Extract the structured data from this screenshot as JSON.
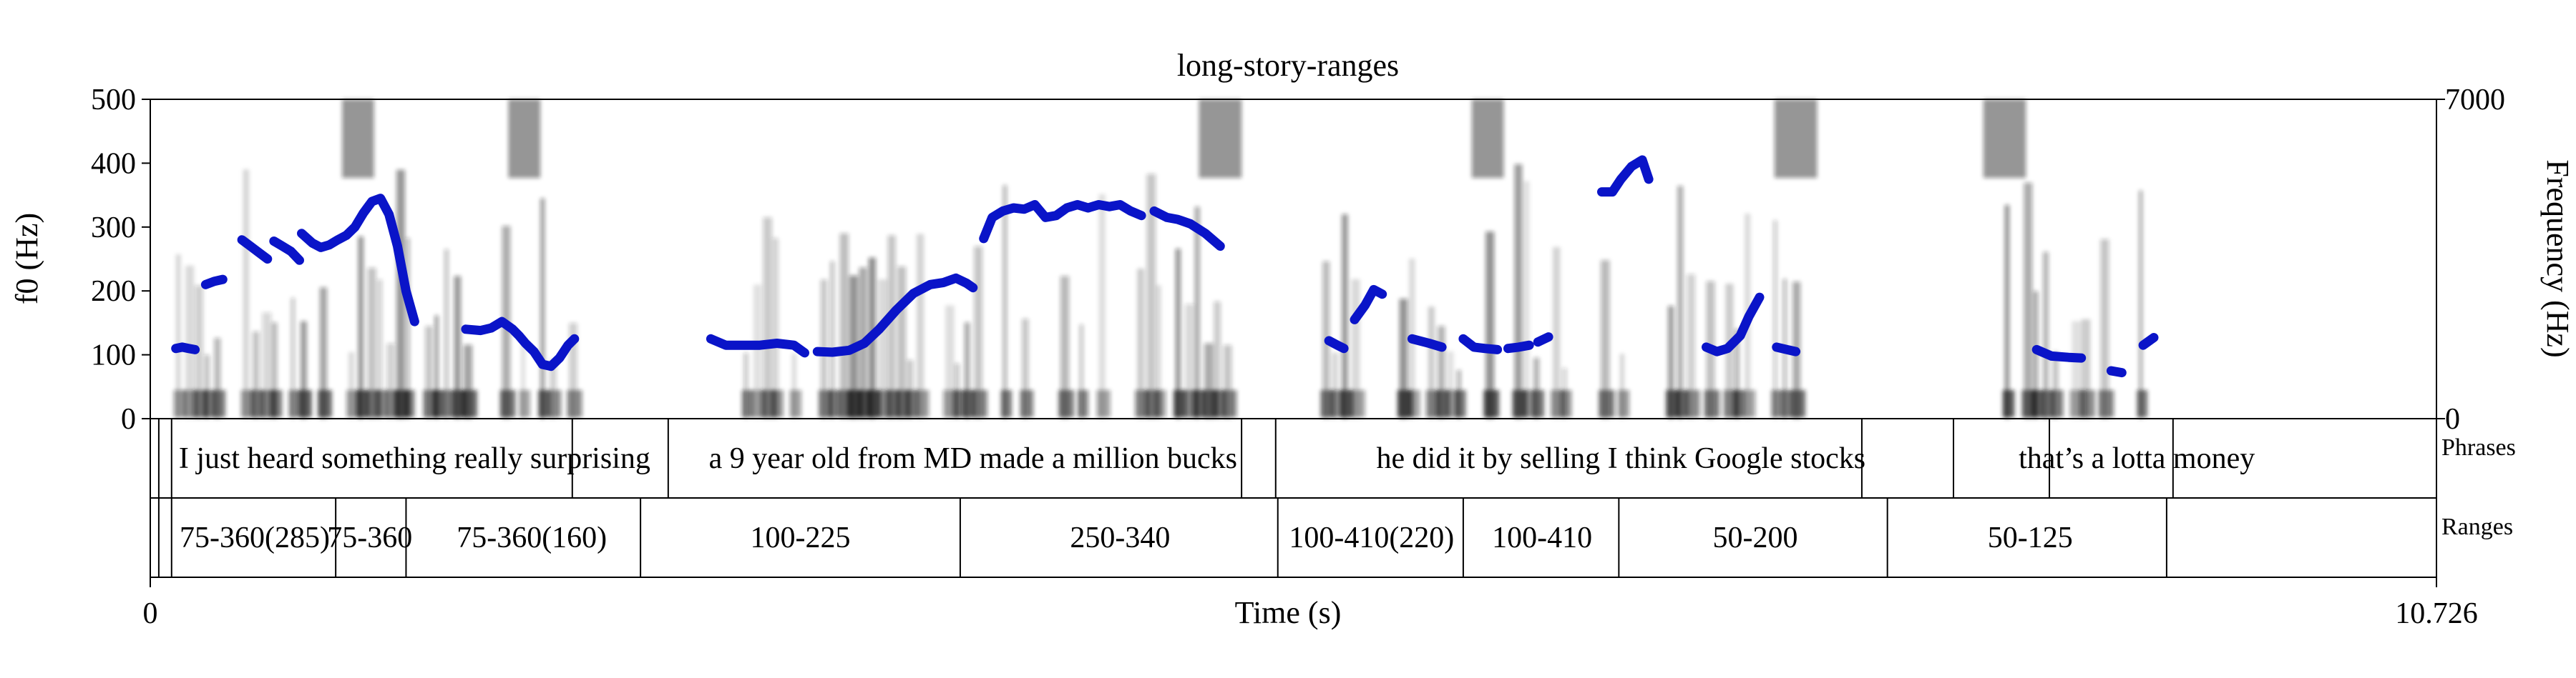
{
  "chart_data": {
    "type": "line",
    "title": "long-story-ranges",
    "xlabel": "Time (s)",
    "ylabel_left": "f0 (Hz)",
    "ylabel_right": "Frequency (Hz)",
    "xlim": [
      0,
      10.726
    ],
    "x_tick_labels": [
      "0",
      "10.726"
    ],
    "ylim_left": [
      0,
      500
    ],
    "y_left_ticks": [
      0,
      100,
      200,
      300,
      400,
      500
    ],
    "ylim_right": [
      0,
      7000
    ],
    "y_right_tick_labels": [
      "0",
      "7000"
    ],
    "grid": false,
    "pitch_color": "#0a14c8",
    "spectrogram_color": "#1a1a1a",
    "tiers": [
      {
        "name": "Phrases",
        "boundaries": [
          0.04,
          0.1,
          1.98,
          2.43,
          5.12,
          5.28,
          8.03,
          8.46,
          8.91,
          9.49
        ],
        "labels": [
          {
            "t": 1.24,
            "text": "I just heard something really surprising"
          },
          {
            "t": 3.86,
            "text": "a 9 year old from MD made a million bucks"
          },
          {
            "t": 6.9,
            "text": "he did it by selling I think Google stocks"
          },
          {
            "t": 9.32,
            "text": "that’s a lotta money"
          }
        ]
      },
      {
        "name": "Ranges",
        "boundaries": [
          0.04,
          0.1,
          0.87,
          1.2,
          2.3,
          3.8,
          5.29,
          6.16,
          6.89,
          8.15,
          9.46
        ],
        "labels": [
          {
            "t": 0.49,
            "text": "75-360(285)"
          },
          {
            "t": 1.03,
            "text": "75-360"
          },
          {
            "t": 1.79,
            "text": "75-360(160)"
          },
          {
            "t": 3.05,
            "text": "100-225"
          },
          {
            "t": 4.55,
            "text": "250-340"
          },
          {
            "t": 5.73,
            "text": "100-410(220)"
          },
          {
            "t": 6.53,
            "text": "100-410"
          },
          {
            "t": 7.53,
            "text": "50-200"
          },
          {
            "t": 8.82,
            "text": "50-125"
          }
        ]
      }
    ],
    "series": [
      {
        "x": [
          0.12,
          0.15,
          0.18,
          0.21
        ],
        "y": [
          110,
          112,
          110,
          108
        ]
      },
      {
        "x": [
          0.26,
          0.3,
          0.34
        ],
        "y": [
          210,
          215,
          218
        ]
      },
      {
        "x": [
          0.43,
          0.47,
          0.51,
          0.55
        ],
        "y": [
          280,
          270,
          260,
          250
        ]
      },
      {
        "x": [
          0.58,
          0.62,
          0.66,
          0.7
        ],
        "y": [
          278,
          270,
          262,
          248
        ]
      },
      {
        "x": [
          0.71,
          0.76,
          0.8,
          0.84,
          0.88,
          0.92,
          0.96,
          1.0,
          1.04,
          1.08,
          1.12,
          1.16,
          1.2,
          1.24
        ],
        "y": [
          290,
          275,
          268,
          272,
          280,
          287,
          300,
          322,
          340,
          345,
          320,
          270,
          200,
          152
        ]
      },
      {
        "x": [
          1.48,
          1.55,
          1.6,
          1.65,
          1.7,
          1.73,
          1.76,
          1.8,
          1.84,
          1.88,
          1.92,
          1.96,
          1.99
        ],
        "y": [
          140,
          138,
          142,
          152,
          140,
          130,
          118,
          105,
          85,
          82,
          95,
          115,
          125
        ]
      },
      {
        "x": [
          2.63,
          2.7,
          2.78,
          2.86,
          2.94,
          3.02,
          3.07
        ],
        "y": [
          125,
          115,
          115,
          115,
          118,
          115,
          103
        ]
      },
      {
        "x": [
          3.13,
          3.2,
          3.28,
          3.35,
          3.42,
          3.5,
          3.58,
          3.66,
          3.72,
          3.78,
          3.83,
          3.86
        ],
        "y": [
          105,
          104,
          107,
          118,
          140,
          170,
          196,
          210,
          213,
          220,
          212,
          205
        ]
      },
      {
        "x": [
          3.91,
          3.95,
          4.0,
          4.05,
          4.1,
          4.15,
          4.2,
          4.25,
          4.3,
          4.35,
          4.4,
          4.45,
          4.5,
          4.55,
          4.6,
          4.65
        ],
        "y": [
          282,
          315,
          325,
          330,
          328,
          335,
          315,
          318,
          330,
          335,
          330,
          335,
          332,
          335,
          325,
          318
        ]
      },
      {
        "x": [
          4.71,
          4.77,
          4.82,
          4.88,
          4.95,
          5.02
        ],
        "y": [
          325,
          315,
          312,
          305,
          290,
          270
        ]
      },
      {
        "x": [
          5.53,
          5.57,
          5.6
        ],
        "y": [
          122,
          115,
          110
        ]
      },
      {
        "x": [
          5.65,
          5.7,
          5.74,
          5.78
        ],
        "y": [
          155,
          178,
          202,
          195
        ]
      },
      {
        "x": [
          5.92,
          6.0,
          6.06
        ],
        "y": [
          125,
          118,
          112
        ]
      },
      {
        "x": [
          6.16,
          6.21,
          6.26,
          6.32
        ],
        "y": [
          125,
          112,
          110,
          108
        ]
      },
      {
        "x": [
          6.37,
          6.42,
          6.47
        ],
        "y": [
          110,
          112,
          115
        ]
      },
      {
        "x": [
          6.51,
          6.56
        ],
        "y": [
          120,
          128
        ]
      },
      {
        "x": [
          6.81,
          6.86,
          6.9,
          6.95,
          7.0,
          7.03
        ],
        "y": [
          355,
          355,
          375,
          395,
          405,
          375
        ]
      },
      {
        "x": [
          7.3,
          7.35,
          7.4,
          7.46,
          7.5,
          7.55
        ],
        "y": [
          112,
          105,
          110,
          130,
          160,
          190
        ]
      },
      {
        "x": [
          7.63,
          7.68,
          7.72
        ],
        "y": [
          112,
          108,
          105
        ]
      },
      {
        "x": [
          8.85,
          8.92,
          9.0,
          9.06
        ],
        "y": [
          108,
          98,
          96,
          95
        ]
      },
      {
        "x": [
          9.2,
          9.25
        ],
        "y": [
          75,
          72
        ]
      },
      {
        "x": [
          9.35,
          9.4
        ],
        "y": [
          115,
          127
        ]
      }
    ]
  }
}
